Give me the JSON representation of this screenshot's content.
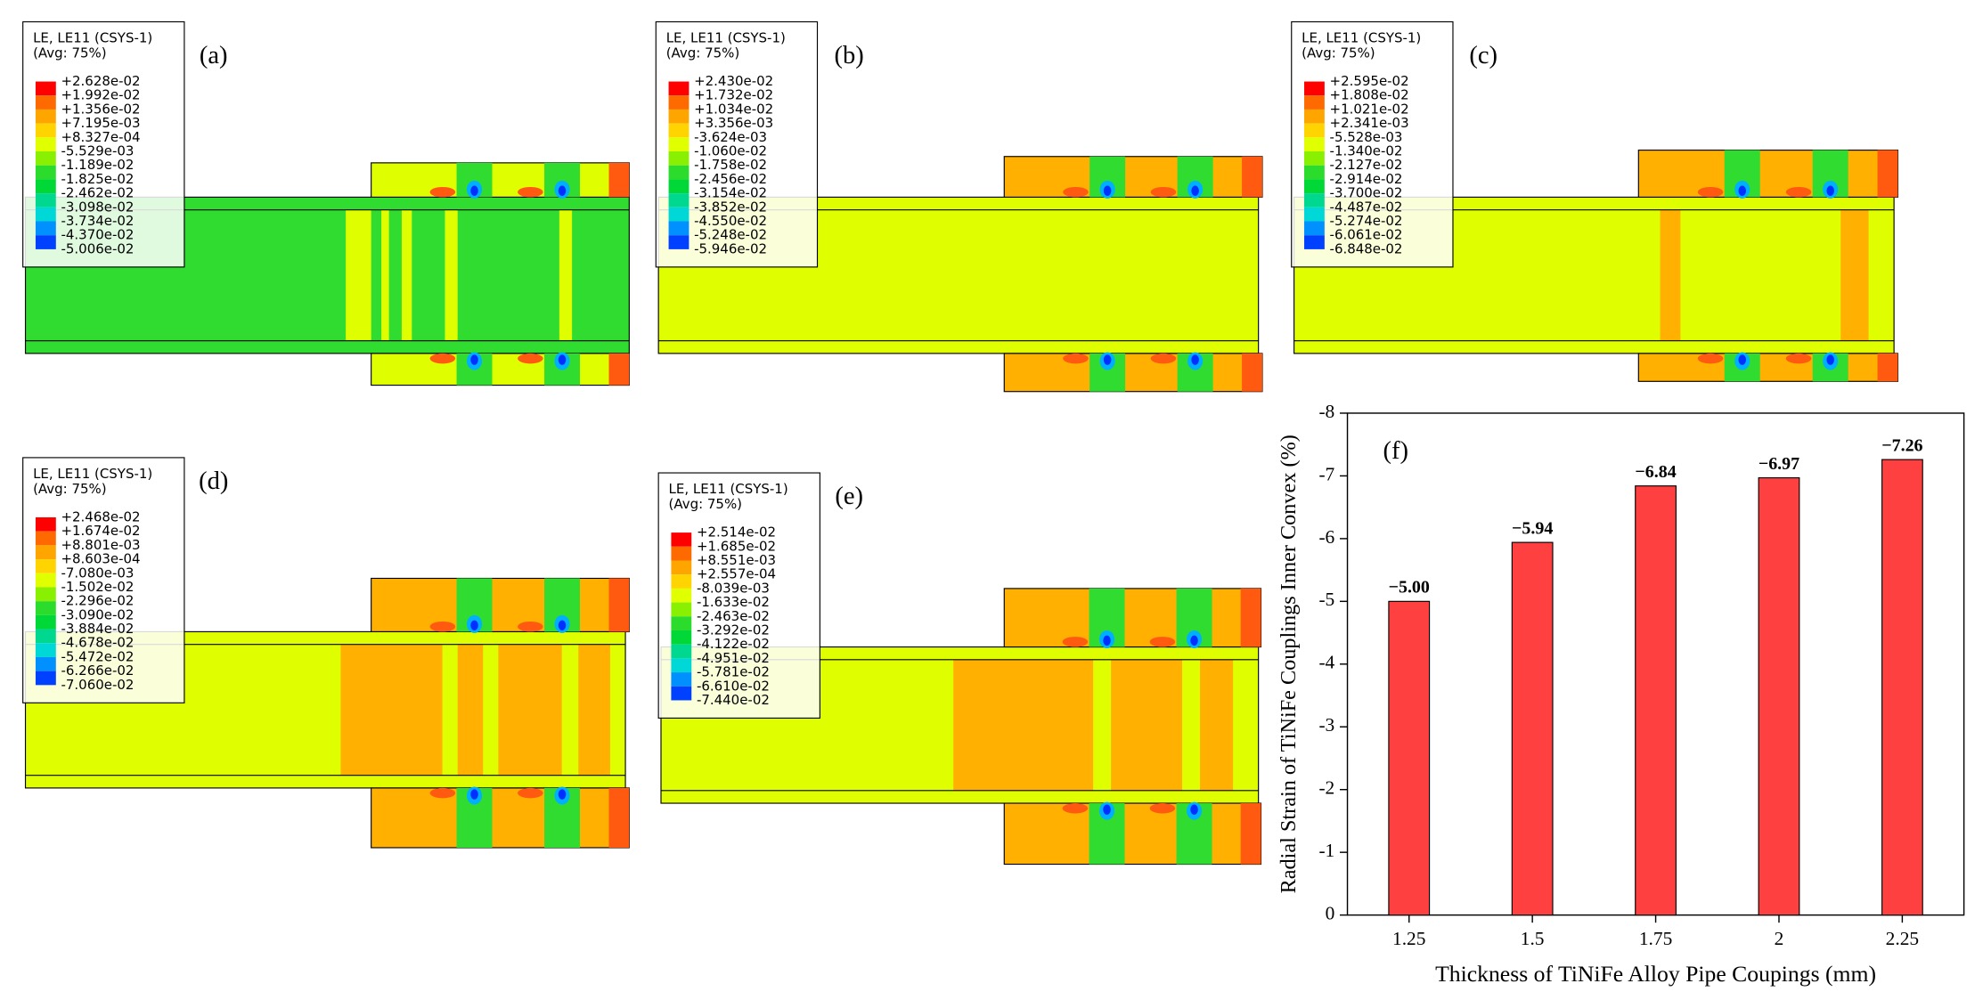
{
  "panels": [
    {
      "label": "(a)",
      "legend_title": "LE, LE11 (CSYS-1)",
      "legend_subtitle": "(Avg: 75%)",
      "legend_values": [
        "+2.628e-02",
        "+1.992e-02",
        "+1.356e-02",
        "+7.195e-03",
        "+8.327e-04",
        "-5.529e-03",
        "-1.189e-02",
        "-1.825e-02",
        "-2.462e-02",
        "-3.098e-02",
        "-3.734e-02",
        "-4.370e-02",
        "-5.006e-02"
      ]
    },
    {
      "label": "(b)",
      "legend_title": "LE, LE11 (CSYS-1)",
      "legend_subtitle": "(Avg: 75%)",
      "legend_values": [
        "+2.430e-02",
        "+1.732e-02",
        "+1.034e-02",
        "+3.356e-03",
        "-3.624e-03",
        "-1.060e-02",
        "-1.758e-02",
        "-2.456e-02",
        "-3.154e-02",
        "-3.852e-02",
        "-4.550e-02",
        "-5.248e-02",
        "-5.946e-02"
      ]
    },
    {
      "label": "(c)",
      "legend_title": "LE, LE11 (CSYS-1)",
      "legend_subtitle": "(Avg: 75%)",
      "legend_values": [
        "+2.595e-02",
        "+1.808e-02",
        "+1.021e-02",
        "+2.341e-03",
        "-5.528e-03",
        "-1.340e-02",
        "-2.127e-02",
        "-2.914e-02",
        "-3.700e-02",
        "-4.487e-02",
        "-5.274e-02",
        "-6.061e-02",
        "-6.848e-02"
      ]
    },
    {
      "label": "(d)",
      "legend_title": "LE, LE11 (CSYS-1)",
      "legend_subtitle": "(Avg: 75%)",
      "legend_values": [
        "+2.468e-02",
        "+1.674e-02",
        "+8.801e-03",
        "+8.603e-04",
        "-7.080e-03",
        "-1.502e-02",
        "-2.296e-02",
        "-3.090e-02",
        "-3.884e-02",
        "-4.678e-02",
        "-5.472e-02",
        "-6.266e-02",
        "-7.060e-02"
      ]
    },
    {
      "label": "(e)",
      "legend_title": "LE, LE11 (CSYS-1)",
      "legend_subtitle": "(Avg: 75%)",
      "legend_values": [
        "+2.514e-02",
        "+1.685e-02",
        "+8.551e-03",
        "+2.557e-04",
        "-8.039e-03",
        "-1.633e-02",
        "-2.463e-02",
        "-3.292e-02",
        "-4.122e-02",
        "-4.951e-02",
        "-5.781e-02",
        "-6.610e-02",
        "-7.440e-02"
      ]
    }
  ],
  "chart_data": {
    "type": "bar",
    "label": "(f)",
    "x_label": "Thickness of TiNiFe Alloy Pipe Coupings (mm)",
    "y_label": "Radial Strain of TiNiFe  Couplings Inner Convex (%)",
    "categories": [
      "1.25",
      "1.5",
      "1.75",
      "2",
      "2.25"
    ],
    "values": [
      -5.0,
      -5.94,
      -6.84,
      -6.97,
      -7.26
    ],
    "value_labels": [
      "−5.00",
      "−5.94",
      "−6.84",
      "−6.97",
      "−7.26"
    ],
    "color": "#ff4040",
    "ylim": [
      0,
      -8
    ],
    "yticks": [
      0,
      -1,
      -2,
      -3,
      -4,
      -5,
      -6,
      -7,
      -8
    ]
  }
}
